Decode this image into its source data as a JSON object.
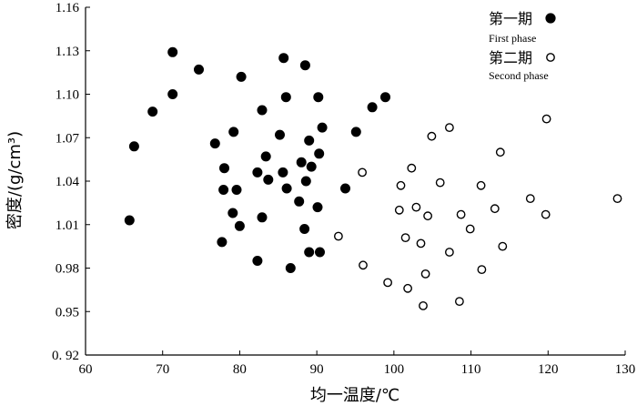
{
  "chart_data": {
    "type": "scatter",
    "xlabel": "均一温度/℃",
    "ylabel": "密度/(g/cm³)",
    "xlim": [
      60,
      130
    ],
    "ylim": [
      0.92,
      1.16
    ],
    "x_ticks": [
      "60",
      "70",
      "80",
      "90",
      "100",
      "110",
      "120",
      "130"
    ],
    "y_ticks": [
      "0. 92",
      "0.95",
      "0.98",
      "1.01",
      "1.04",
      "1.07",
      "1.10",
      "1.13",
      "1.16"
    ],
    "grid": false,
    "legend_position": "top-right",
    "series": [
      {
        "name": "第一期",
        "name_en": "First phase",
        "marker": "filled-circle",
        "points": [
          [
            71.3,
            1.129
          ],
          [
            74.7,
            1.117
          ],
          [
            71.3,
            1.1
          ],
          [
            68.7,
            1.088
          ],
          [
            66.3,
            1.064
          ],
          [
            65.7,
            1.013
          ],
          [
            80.2,
            1.112
          ],
          [
            85.7,
            1.125
          ],
          [
            88.5,
            1.12
          ],
          [
            86,
            1.098
          ],
          [
            90.2,
            1.098
          ],
          [
            82.9,
            1.089
          ],
          [
            79.2,
            1.074
          ],
          [
            76.8,
            1.066
          ],
          [
            85.2,
            1.072
          ],
          [
            90.7,
            1.077
          ],
          [
            89,
            1.068
          ],
          [
            83.4,
            1.057
          ],
          [
            90.3,
            1.059
          ],
          [
            78,
            1.049
          ],
          [
            88,
            1.053
          ],
          [
            89.3,
            1.05
          ],
          [
            82.3,
            1.046
          ],
          [
            85.6,
            1.046
          ],
          [
            83.7,
            1.041
          ],
          [
            88.6,
            1.04
          ],
          [
            77.9,
            1.034
          ],
          [
            79.6,
            1.034
          ],
          [
            86.1,
            1.035
          ],
          [
            87.7,
            1.026
          ],
          [
            90.1,
            1.022
          ],
          [
            79.1,
            1.018
          ],
          [
            82.9,
            1.015
          ],
          [
            80,
            1.009
          ],
          [
            88.4,
            1.007
          ],
          [
            77.7,
            0.998
          ],
          [
            89,
            0.991
          ],
          [
            90.4,
            0.991
          ],
          [
            82.3,
            0.985
          ],
          [
            86.6,
            0.98
          ],
          [
            97.2,
            1.091
          ],
          [
            98.9,
            1.098
          ],
          [
            95.1,
            1.074
          ],
          [
            93.7,
            1.035
          ]
        ]
      },
      {
        "name": "第二期",
        "name_en": "Second phase",
        "marker": "open-circle",
        "points": [
          [
            119.8,
            1.083
          ],
          [
            107.2,
            1.077
          ],
          [
            104.9,
            1.071
          ],
          [
            113.8,
            1.06
          ],
          [
            102.3,
            1.049
          ],
          [
            95.9,
            1.046
          ],
          [
            106,
            1.039
          ],
          [
            100.9,
            1.037
          ],
          [
            111.3,
            1.037
          ],
          [
            117.7,
            1.028
          ],
          [
            129,
            1.028
          ],
          [
            102.9,
            1.022
          ],
          [
            100.7,
            1.02
          ],
          [
            113.1,
            1.021
          ],
          [
            104.4,
            1.016
          ],
          [
            108.7,
            1.017
          ],
          [
            119.7,
            1.017
          ],
          [
            109.9,
            1.007
          ],
          [
            92.8,
            1.002
          ],
          [
            101.5,
            1.001
          ],
          [
            103.5,
            0.997
          ],
          [
            114.1,
            0.995
          ],
          [
            107.2,
            0.991
          ],
          [
            96,
            0.982
          ],
          [
            111.4,
            0.979
          ],
          [
            104.1,
            0.976
          ],
          [
            99.2,
            0.97
          ],
          [
            101.8,
            0.966
          ],
          [
            108.5,
            0.957
          ],
          [
            103.8,
            0.954
          ]
        ]
      }
    ]
  }
}
